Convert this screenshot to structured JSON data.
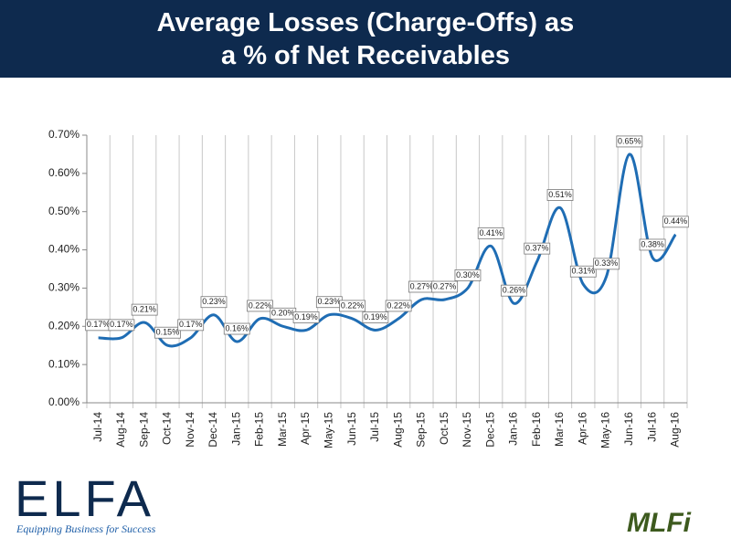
{
  "chart_data": {
    "type": "line",
    "title": "Average Losses (Charge-Offs) as a % of Net Receivables",
    "categories": [
      "Jul-14",
      "Aug-14",
      "Sep-14",
      "Oct-14",
      "Nov-14",
      "Dec-14",
      "Jan-15",
      "Feb-15",
      "Mar-15",
      "Apr-15",
      "May-15",
      "Jun-15",
      "Jul-15",
      "Aug-15",
      "Sep-15",
      "Oct-15",
      "Nov-15",
      "Dec-15",
      "Jan-16",
      "Feb-16",
      "Mar-16",
      "Apr-16",
      "May-16",
      "Jun-16",
      "Jul-16",
      "Aug-16"
    ],
    "values": [
      0.17,
      0.17,
      0.21,
      0.15,
      0.17,
      0.23,
      0.16,
      0.22,
      0.2,
      0.19,
      0.23,
      0.22,
      0.19,
      0.22,
      0.27,
      0.27,
      0.3,
      0.41,
      0.26,
      0.37,
      0.51,
      0.31,
      0.33,
      0.65,
      0.38,
      0.44
    ],
    "value_labels": [
      "0.17%",
      "0.17%",
      "0.21%",
      "0.15%",
      "0.17%",
      "0.23%",
      "0.16%",
      "0.22%",
      "0.20%",
      "0.19%",
      "0.23%",
      "0.22%",
      "0.19%",
      "0.22%",
      "0.27%",
      "0.27%",
      "0.30%",
      "0.41%",
      "0.26%",
      "0.37%",
      "0.51%",
      "0.31%",
      "0.33%",
      "0.65%",
      "0.38%",
      "0.44%"
    ],
    "color": "#1f6db4",
    "smooth": true,
    "grid": true,
    "ylim": [
      0,
      0.7
    ],
    "yticks": [
      {
        "value": 0,
        "label": "0.00%"
      },
      {
        "value": 0.1,
        "label": "0.10%"
      },
      {
        "value": 0.2,
        "label": "0.20%"
      },
      {
        "value": 0.3,
        "label": "0.30%"
      },
      {
        "value": 0.4,
        "label": "0.40%"
      },
      {
        "value": 0.5,
        "label": "0.50%"
      },
      {
        "value": 0.6,
        "label": "0.60%"
      },
      {
        "value": 0.7,
        "label": "0.70%"
      }
    ]
  },
  "logos": {
    "left": "ELFA",
    "tagline": "Equipping Business for Success",
    "right": "MLFi"
  }
}
